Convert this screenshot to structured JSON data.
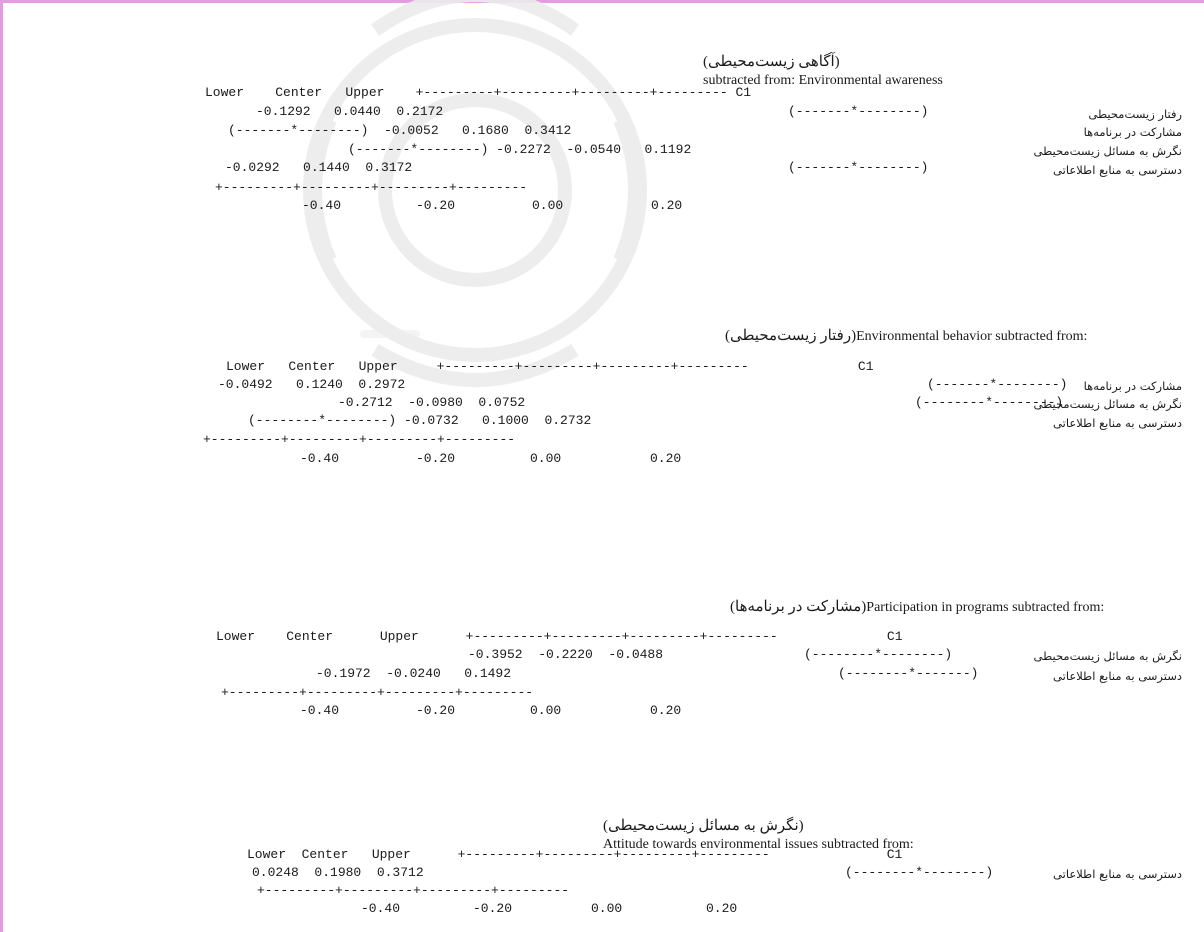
{
  "sections": [
    {
      "title_en": "subtracted from: Environmental awareness",
      "title_fa": "(آگاهی زیست‌محیطی)",
      "header_mono": "Lower    Center   Upper    +---------+---------+---------+--------- C1",
      "rows": [
        {
          "label": "رفتار زیست‌محیطی",
          "text": "-0.1292   0.0440  0.2172"
        },
        {
          "label": "مشارکت در برنامه‌ها",
          "text": "(-------*--------)  -0.0052   0.1680  0.3412"
        },
        {
          "label": "نگرش به مسائل زیست‌محیطی",
          "text": "(-------*--------) -0.2272  -0.0540   0.1192"
        },
        {
          "label": "دسترسی به منابع اطلاعاتی",
          "text": "-0.0292   0.1440  0.3172"
        }
      ],
      "interval_cols": [
        "(-------*--------)",
        "",
        "",
        "(-------*--------)"
      ],
      "axis_line": "+---------+---------+---------+---------",
      "axis_ticks": [
        "-0.40",
        "-0.20",
        "0.00",
        "0.20"
      ]
    },
    {
      "title_en": "Environmental behavior subtracted from:",
      "title_fa": "(رفتار زیست‌محیطی)",
      "header_mono": "Lower   Center   Upper     +---------+---------+---------+---------              C1",
      "rows": [
        {
          "label": "مشارکت در برنامه‌ها",
          "text": "-0.0492   0.1240  0.2972"
        },
        {
          "label": "نگرش به مسائل زیست‌محیطی",
          "text": "-0.2712  -0.0980  0.0752"
        },
        {
          "label": "دسترسی به منابع اطلاعاتی",
          "text": "(--------*--------) -0.0732   0.1000  0.2732"
        }
      ],
      "interval_cols": [
        "(-------*--------)",
        "(--------*--------)",
        ""
      ],
      "axis_line": "+---------+---------+---------+---------",
      "axis_ticks": [
        "-0.40",
        "-0.20",
        "0.00",
        "0.20"
      ]
    },
    {
      "title_en": "Participation in programs subtracted from:",
      "title_fa": "(مشارکت در برنامه‌ها)",
      "header_mono": "Lower    Center      Upper      +---------+---------+---------+---------              C1",
      "rows": [
        {
          "label": "نگرش به مسائل زیست‌محیطی",
          "text": "-0.3952  -0.2220  -0.0488"
        },
        {
          "label": "دسترسی به منابع اطلاعاتی",
          "text": "-0.1972  -0.0240   0.1492"
        }
      ],
      "interval_cols": [
        "(--------*--------)",
        "(--------*-------)"
      ],
      "axis_line": "+---------+---------+---------+---------",
      "axis_ticks": [
        "-0.40",
        "-0.20",
        "0.00",
        "0.20"
      ]
    },
    {
      "title_en": "Attitude towards environmental issues subtracted from:",
      "title_fa": "(نگرش به مسائل زیست‌محیطی)",
      "header_mono": "Lower  Center   Upper      +---------+---------+---------+---------               C1",
      "rows": [
        {
          "label": "دسترسی به منابع اطلاعاتی",
          "text": "0.0248  0.1980  0.3712"
        }
      ],
      "interval_cols": [
        "(--------*--------)"
      ],
      "axis_line": "+---------+---------+---------+---------",
      "axis_ticks": [
        "-0.40",
        "-0.20",
        "0.00",
        "0.20"
      ]
    }
  ]
}
